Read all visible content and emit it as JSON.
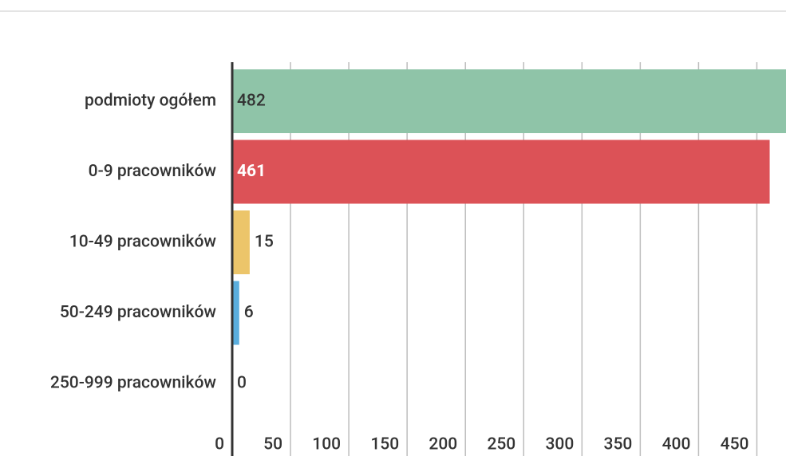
{
  "chart_data": {
    "type": "hbar",
    "categories": [
      "podmioty ogółem",
      "0-9 pracowników",
      "10-49 pracowników",
      "50-249 pracowników",
      "250-999 pracowników"
    ],
    "values": [
      482,
      461,
      15,
      6,
      0
    ],
    "colors": [
      "#8fc4a8",
      "#dc5257",
      "#ecc56a",
      "#5aaede",
      "#9e9e9e"
    ],
    "xlim": [
      0,
      475
    ],
    "xticks": [
      0,
      50,
      100,
      150,
      200,
      250,
      300,
      350,
      400,
      450
    ],
    "grid": true
  }
}
